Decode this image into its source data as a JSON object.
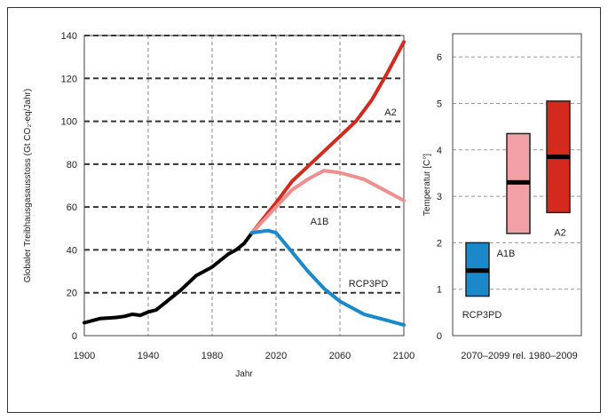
{
  "chart_data": [
    {
      "type": "line",
      "xlabel": "Jahr",
      "ylabel": "Globaler Treibhausgasausstoss (Gt CO₂-eq/Jahr)",
      "xlim": [
        1900,
        2100
      ],
      "ylim": [
        0,
        140
      ],
      "xticks": [
        "1900",
        "1940",
        "1980",
        "2020",
        "2060",
        "2100"
      ],
      "yticks": [
        "0",
        "20",
        "40",
        "60",
        "80",
        "100",
        "120",
        "140"
      ],
      "grid": true,
      "series": [
        {
          "label": "historical",
          "color": "#000000",
          "x": [
            1900,
            1910,
            1920,
            1925,
            1930,
            1935,
            1940,
            1945,
            1950,
            1960,
            1970,
            1980,
            1985,
            1990,
            1995,
            2000,
            2005
          ],
          "y": [
            6,
            8,
            8.5,
            9,
            10,
            9.5,
            11,
            12,
            15,
            21,
            28,
            32,
            35,
            38,
            40,
            43,
            48
          ]
        },
        {
          "name": "A2",
          "color": "#d42a1e",
          "x": [
            2005,
            2020,
            2030,
            2040,
            2050,
            2060,
            2070,
            2080,
            2090,
            2100
          ],
          "y": [
            48,
            62,
            72,
            79,
            86,
            93,
            100,
            110,
            123,
            137
          ]
        },
        {
          "name": "A1B",
          "color": "#ee9090",
          "x": [
            2005,
            2020,
            2030,
            2040,
            2050,
            2060,
            2075,
            2090,
            2100
          ],
          "y": [
            48,
            60,
            68,
            73,
            77,
            76,
            73,
            67,
            63
          ]
        },
        {
          "name": "RCP3PD",
          "color": "#1a88c9",
          "x": [
            2005,
            2015,
            2020,
            2030,
            2040,
            2050,
            2060,
            2075,
            2090,
            2100
          ],
          "y": [
            48,
            49,
            48,
            39,
            30,
            22,
            16,
            10,
            7,
            5
          ]
        }
      ]
    },
    {
      "type": "bar",
      "xlabel": "2070–2099 rel. 1980–2009",
      "ylabel": "Temperatur [C°]",
      "ylim": [
        0,
        6.5
      ],
      "yticks": [
        "0",
        "1",
        "2",
        "3",
        "4",
        "5",
        "6"
      ],
      "grid": true,
      "series": [
        {
          "name": "RCP3PD",
          "low": 0.85,
          "high": 2.0,
          "mid": 1.4,
          "color": "#1a88c9"
        },
        {
          "name": "A1B",
          "low": 2.2,
          "high": 4.35,
          "mid": 3.3,
          "color": "#f2a0a6"
        },
        {
          "name": "A2",
          "low": 2.65,
          "high": 5.05,
          "mid": 3.85,
          "color": "#d42a1e"
        }
      ]
    }
  ]
}
